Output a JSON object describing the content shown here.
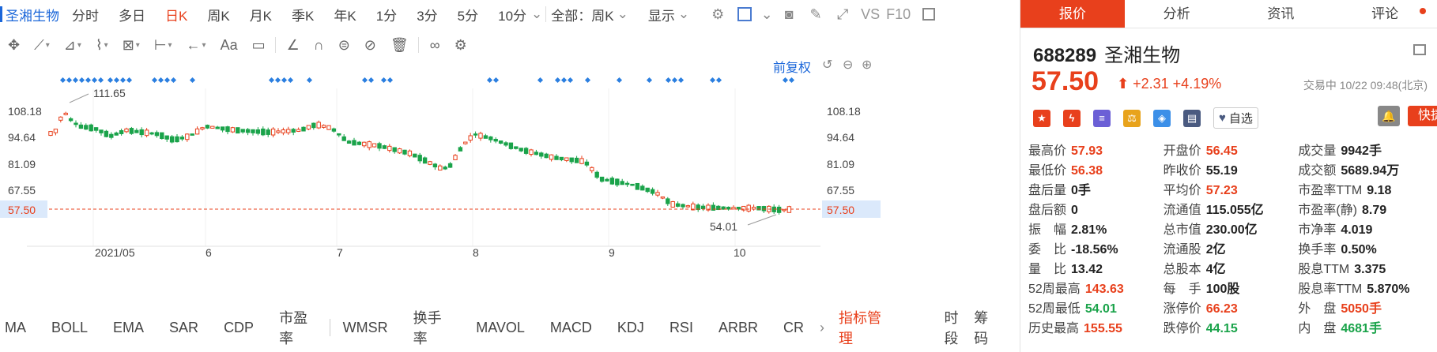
{
  "toolbar": {
    "stock_name": "圣湘生物",
    "tabs": [
      "分时",
      "多日",
      "日K",
      "周K",
      "月K",
      "季K",
      "年K",
      "1分",
      "3分",
      "5分",
      "10分"
    ],
    "active_tab": "日K",
    "range_select": "全部：周K",
    "display_select": "显示",
    "vs_label": "VS",
    "f10_label": "F10"
  },
  "chart": {
    "restore_label": "前复权",
    "y_ticks": [
      "108.18",
      "94.64",
      "81.09",
      "67.55",
      "57.50",
      "54.01"
    ],
    "price_tag": "57.50",
    "high_label": "111.65",
    "low_label": "54.01",
    "x_ticks": [
      "2021/05",
      "6",
      "7",
      "8",
      "9",
      "10"
    ]
  },
  "indicators": {
    "items": [
      "MA",
      "BOLL",
      "EMA",
      "SAR",
      "CDP",
      "市盈率"
    ],
    "items2": [
      "WMSR",
      "换手率",
      "MAVOL",
      "MACD",
      "KDJ",
      "RSI",
      "ARBR",
      "CR"
    ],
    "manage": "指标管理",
    "time_label": "时段",
    "chip_label": "筹码"
  },
  "right": {
    "tabs": [
      "报价",
      "分析",
      "资讯",
      "评论"
    ],
    "code": "688289",
    "name": "圣湘生物",
    "price": "57.50",
    "change": "+2.31",
    "change_pct": "+4.19%",
    "status_time": "交易中 10/22 09:48(北京)",
    "watch_label": "自选",
    "quick_trade": "快捷交易",
    "rows": [
      [
        [
          "最高价",
          "57.93",
          "r"
        ],
        [
          "开盘价",
          "56.45",
          "r"
        ],
        [
          "成交量",
          "9942手",
          ""
        ]
      ],
      [
        [
          "最低价",
          "56.38",
          "r"
        ],
        [
          "昨收价",
          "55.19",
          ""
        ],
        [
          "成交额",
          "5689.94万",
          ""
        ]
      ],
      [
        [
          "盘后量",
          "0手",
          ""
        ],
        [
          "平均价",
          "57.23",
          "r"
        ],
        [
          "市盈率TTM",
          "9.18",
          ""
        ]
      ],
      [
        [
          "盘后额",
          "0",
          ""
        ],
        [
          "流通值",
          "115.055亿",
          ""
        ],
        [
          "市盈率(静)",
          "8.79",
          ""
        ]
      ],
      [
        [
          "振　幅",
          "2.81%",
          ""
        ],
        [
          "总市值",
          "230.00亿",
          ""
        ],
        [
          "市净率",
          "4.019",
          ""
        ]
      ],
      [
        [
          "委　比",
          "-18.56%",
          ""
        ],
        [
          "流通股",
          "2亿",
          ""
        ],
        [
          "换手率",
          "0.50%",
          ""
        ]
      ],
      [
        [
          "量　比",
          "13.42",
          ""
        ],
        [
          "总股本",
          "4亿",
          ""
        ],
        [
          "股息TTM",
          "3.375",
          ""
        ]
      ],
      [
        [
          "52周最高",
          "143.63",
          "r"
        ],
        [
          "每　手",
          "100股",
          ""
        ],
        [
          "股息率TTM",
          "5.870%",
          ""
        ]
      ],
      [
        [
          "52周最低",
          "54.01",
          "g"
        ],
        [
          "涨停价",
          "66.23",
          "r"
        ],
        [
          "外　盘",
          "5050手",
          "r"
        ]
      ],
      [
        [
          "历史最高",
          "155.55",
          "r"
        ],
        [
          "跌停价",
          "44.15",
          "g"
        ],
        [
          "内　盘",
          "4681手",
          "g"
        ]
      ]
    ]
  },
  "colors": {
    "up": "#e8401c",
    "down": "#1aa34a",
    "accent": "#1a66d9"
  }
}
